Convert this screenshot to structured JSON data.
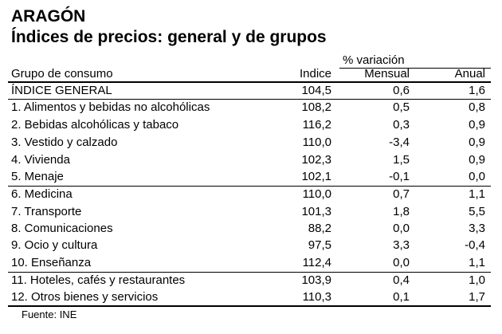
{
  "title": "ARAGÓN",
  "subtitle": "Índices de precios: general y de grupos",
  "headers": {
    "variation_group": "% variación",
    "group": "Grupo de consumo",
    "indice": "Indice",
    "mensual": "Mensual",
    "anual": "Anual"
  },
  "rows": [
    {
      "name": "ÍNDICE GENERAL",
      "indice": "104,5",
      "mensual": "0,6",
      "anual": "1,6"
    },
    {
      "name": "1. Alimentos y bebidas no alcohólicas",
      "indice": "108,2",
      "mensual": "0,5",
      "anual": "0,8"
    },
    {
      "name": "2. Bebidas alcohólicas y tabaco",
      "indice": "116,2",
      "mensual": "0,3",
      "anual": "0,9"
    },
    {
      "name": "3. Vestido y calzado",
      "indice": "110,0",
      "mensual": "-3,4",
      "anual": "0,9"
    },
    {
      "name": "4. Vivienda",
      "indice": "102,3",
      "mensual": "1,5",
      "anual": "0,9"
    },
    {
      "name": "5. Menaje",
      "indice": "102,1",
      "mensual": "-0,1",
      "anual": "0,0"
    },
    {
      "name": "6. Medicina",
      "indice": "110,0",
      "mensual": "0,7",
      "anual": "1,1"
    },
    {
      "name": "7. Transporte",
      "indice": "101,3",
      "mensual": "1,8",
      "anual": "5,5"
    },
    {
      "name": "8. Comunicaciones",
      "indice": "88,2",
      "mensual": "0,0",
      "anual": "3,3"
    },
    {
      "name": "9. Ocio y cultura",
      "indice": "97,5",
      "mensual": "3,3",
      "anual": "-0,4"
    },
    {
      "name": "10. Enseñanza",
      "indice": "112,4",
      "mensual": "0,0",
      "anual": "1,1"
    },
    {
      "name": "11. Hoteles, cafés y restaurantes",
      "indice": "103,9",
      "mensual": "0,4",
      "anual": "1,0"
    },
    {
      "name": "12. Otros bienes y servicios",
      "indice": "110,3",
      "mensual": "0,1",
      "anual": "1,7"
    }
  ],
  "source": "Fuente: INE"
}
